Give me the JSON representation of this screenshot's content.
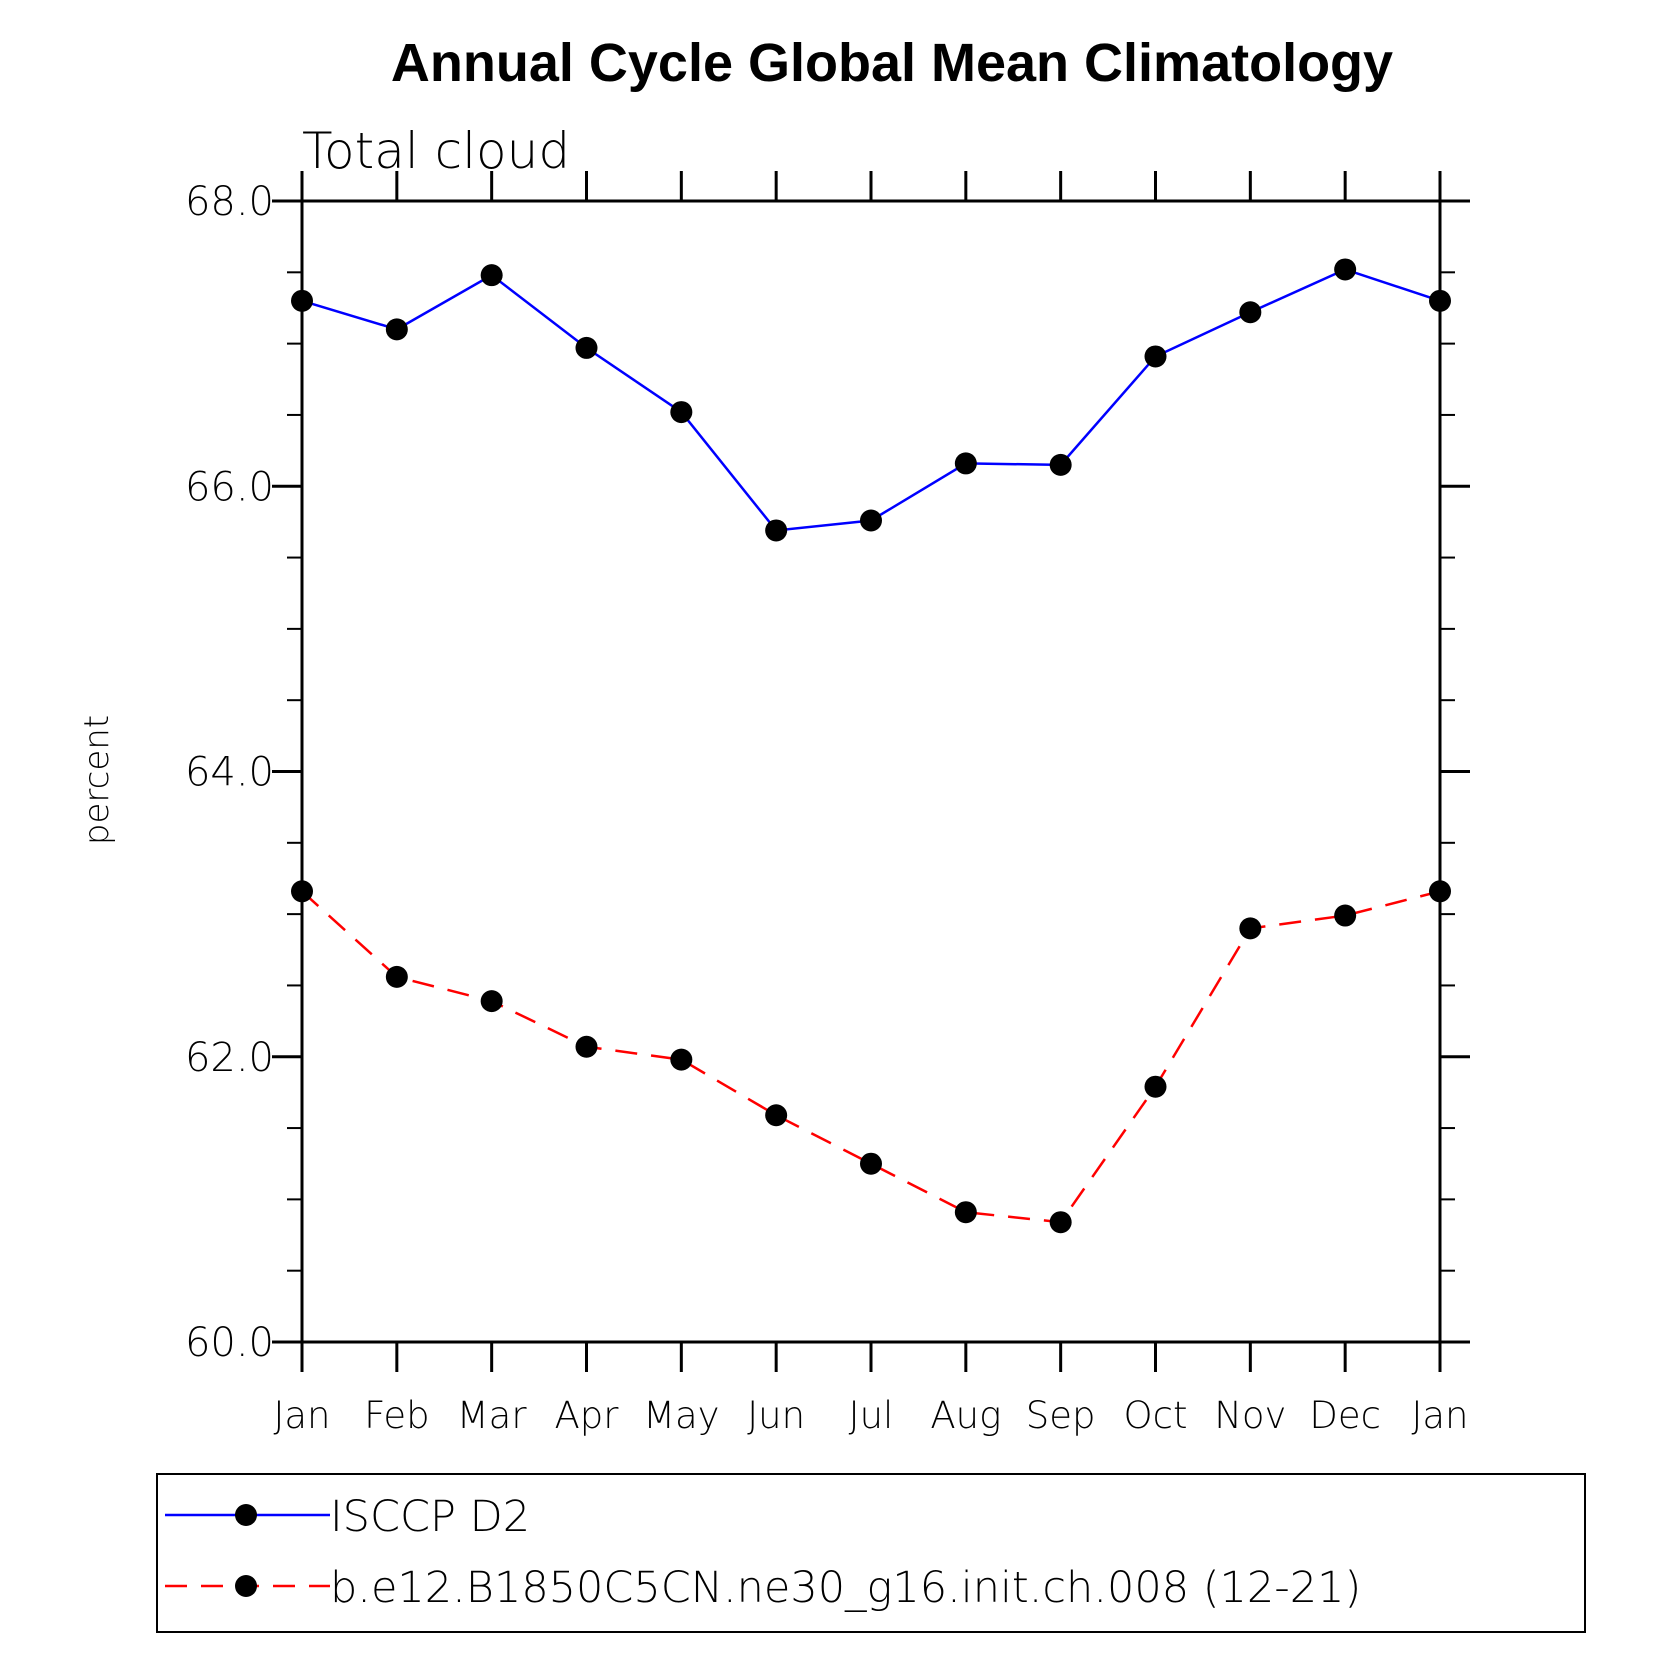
{
  "chart_data": {
    "type": "line",
    "title": "Annual Cycle Global Mean Climatology",
    "subtitle": "Total cloud",
    "ylabel": "percent",
    "xlabel": "",
    "categories": [
      "Jan",
      "Feb",
      "Mar",
      "Apr",
      "May",
      "Jun",
      "Jul",
      "Aug",
      "Sep",
      "Oct",
      "Nov",
      "Dec",
      "Jan"
    ],
    "ylim": [
      60.0,
      68.0
    ],
    "yticks": [
      "60.0",
      "62.0",
      "64.0",
      "66.0",
      "68.0"
    ],
    "grid": false,
    "legend_position": "bottom",
    "series": [
      {
        "name": "ISCCP D2",
        "color": "#0000ff",
        "line_style": "solid",
        "marker": "filled-circle",
        "values": [
          67.3,
          67.1,
          67.48,
          66.97,
          66.52,
          65.69,
          65.76,
          66.16,
          66.15,
          66.91,
          67.22,
          67.52,
          67.3
        ]
      },
      {
        "name": "b.e12.B1850C5CN.ne30_g16.init.ch.008 (12-21)",
        "color": "#ff0000",
        "line_style": "dashed",
        "marker": "filled-circle",
        "values": [
          63.16,
          62.56,
          62.39,
          62.07,
          61.98,
          61.59,
          61.25,
          60.91,
          60.84,
          61.79,
          62.9,
          62.99,
          63.16
        ]
      }
    ]
  }
}
